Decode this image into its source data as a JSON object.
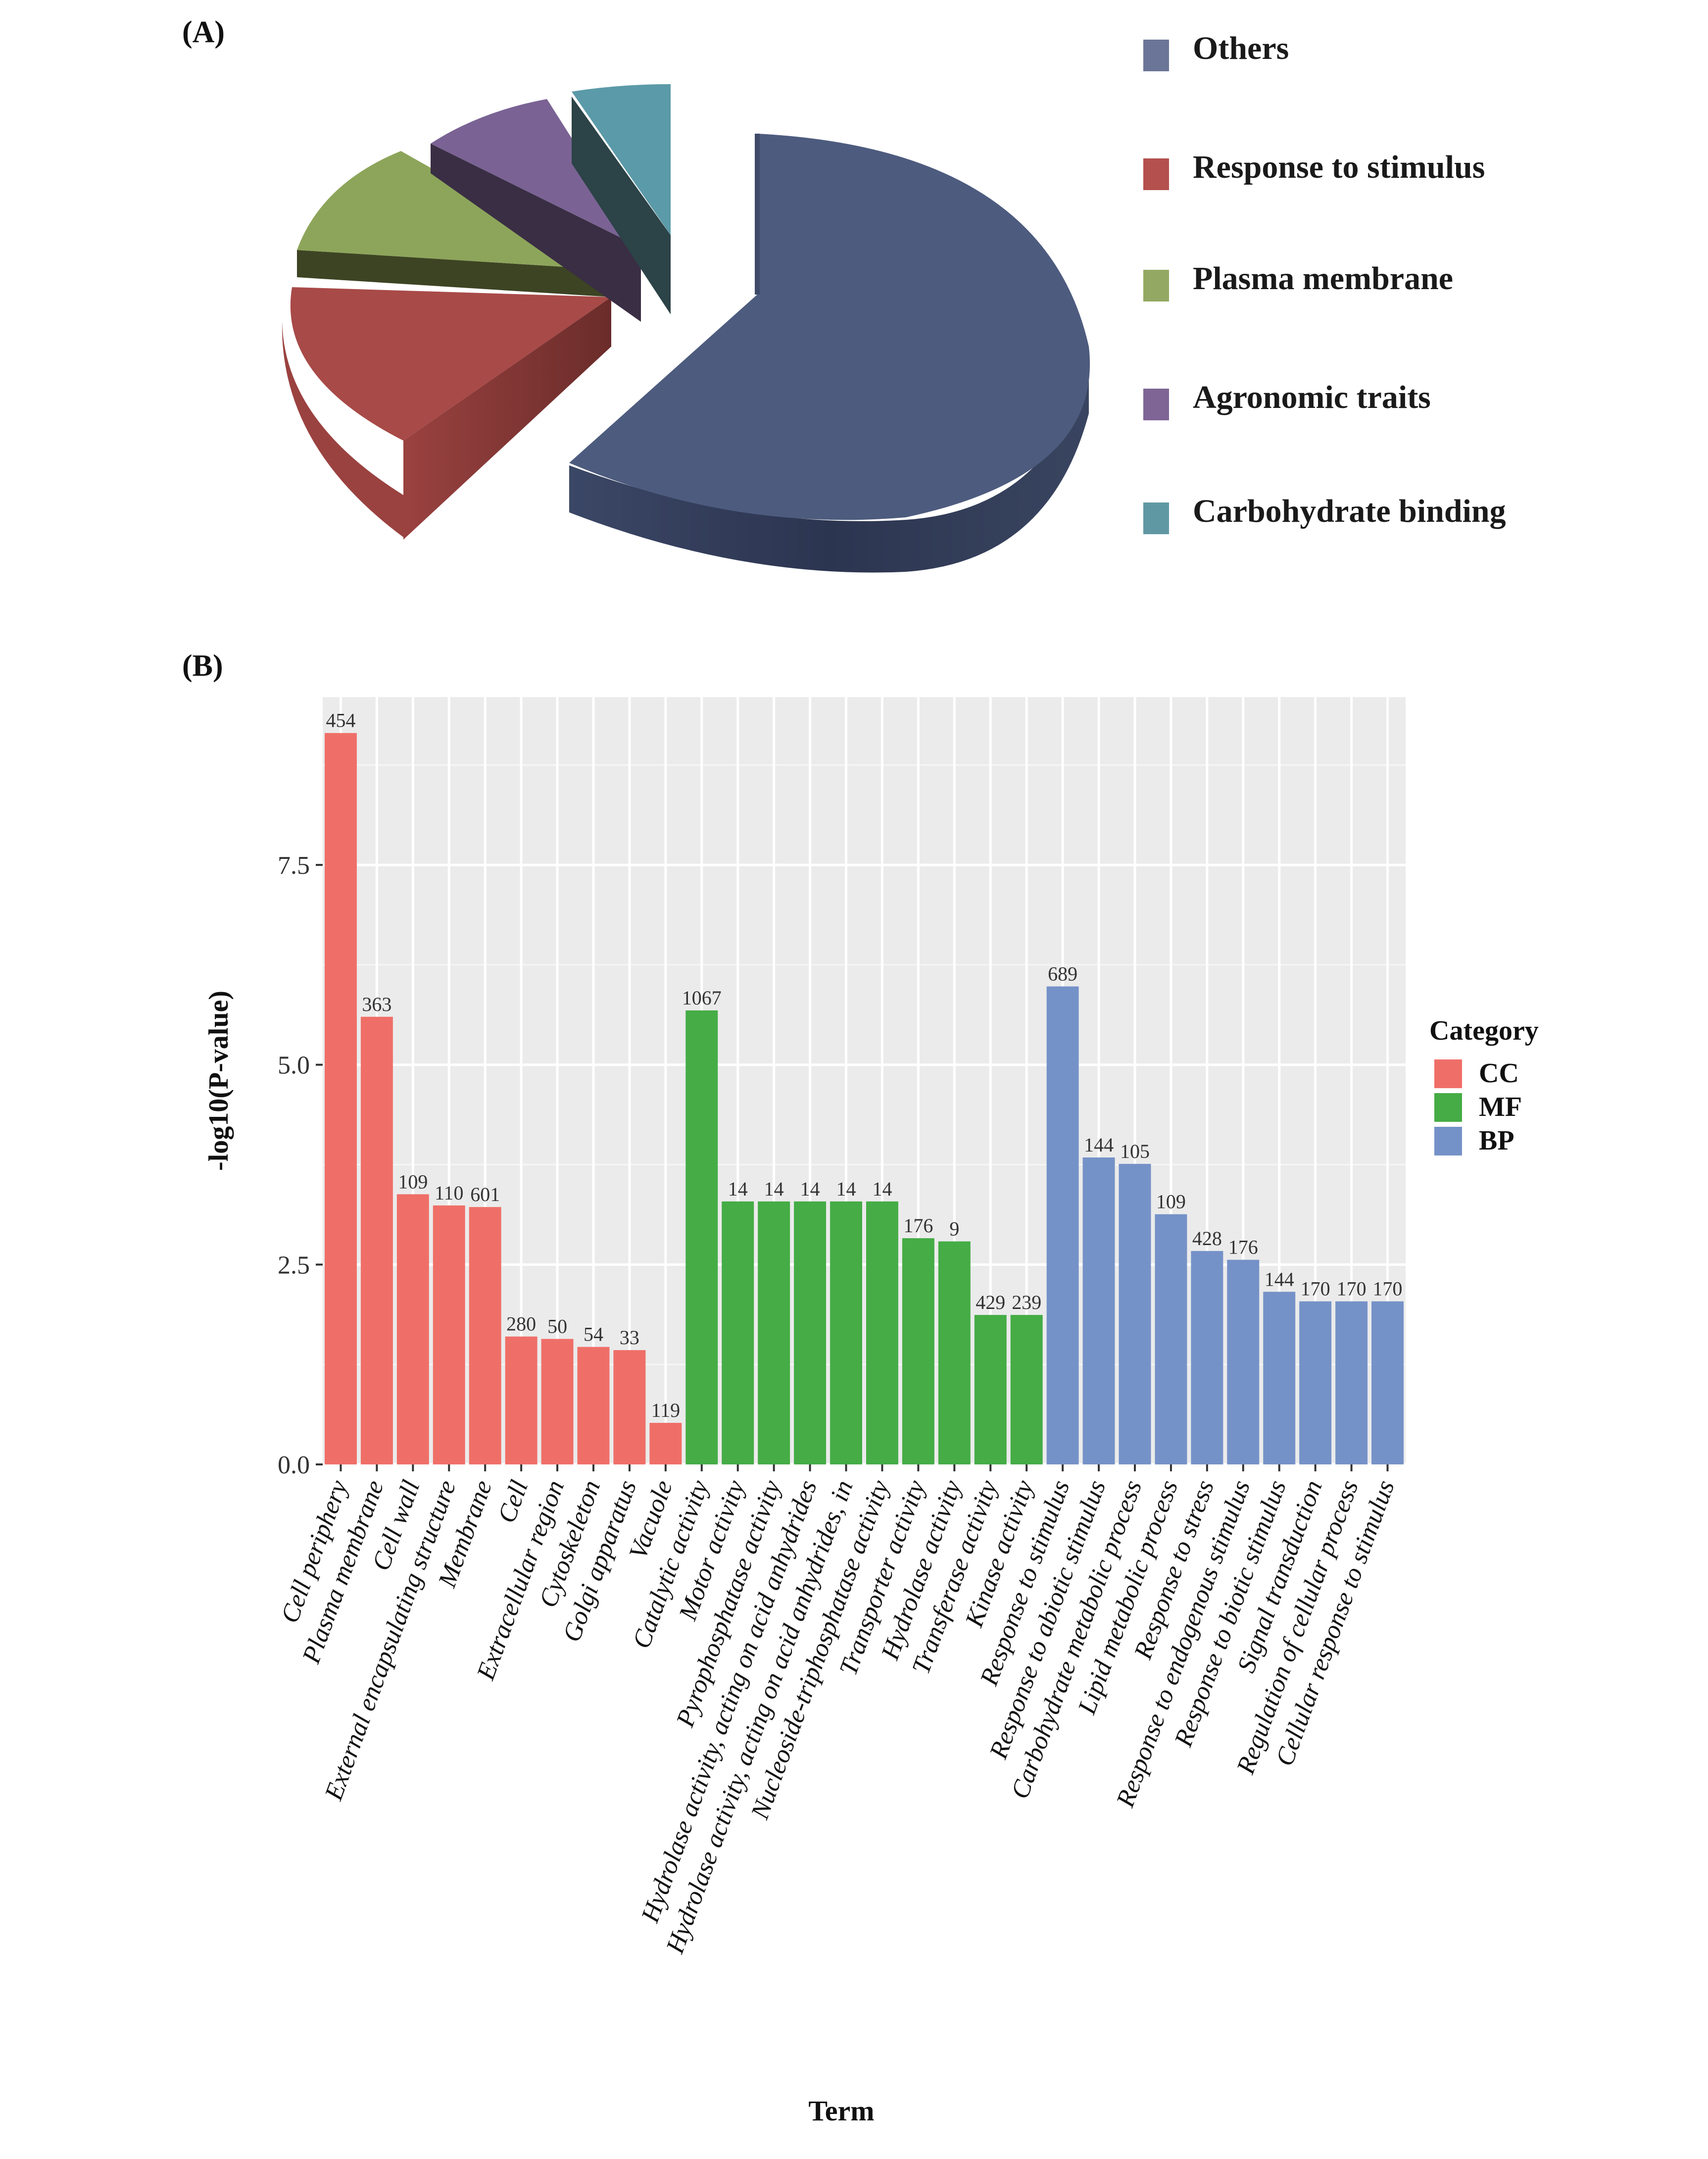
{
  "panels": {
    "a_label": "(A)",
    "b_label": "(B)"
  },
  "chart_data": [
    {
      "type": "pie",
      "style": "3d-exploded",
      "labels": [
        "Others",
        "Response to stimulus",
        "Plasma membrane",
        "Agronomic traits",
        "Carbohydrate binding"
      ],
      "values": [
        60,
        18,
        10,
        7,
        5
      ],
      "value_unit": "percent (estimated)",
      "colors": [
        "#4d5b7e",
        "#a84a48",
        "#8da55a",
        "#7a6394",
        "#5b9aa8"
      ],
      "legend_position": "right"
    },
    {
      "type": "bar",
      "xlabel": "Term",
      "ylabel": "-log10(P-value)",
      "ylim": [
        0,
        9.6
      ],
      "yticks": [
        "0.0",
        "2.5",
        "5.0",
        "7.5"
      ],
      "grid": true,
      "legend": {
        "title": "Category",
        "position": "right",
        "entries": [
          {
            "name": "CC",
            "color": "#ef6f68"
          },
          {
            "name": "MF",
            "color": "#45ac46"
          },
          {
            "name": "BP",
            "color": "#7592c8"
          }
        ]
      },
      "categories": [
        "Cell periphery",
        "Plasma membrane",
        "Cell wall",
        "External encapsulating structure",
        "Membrane",
        "Cell",
        "Extracellular region",
        "Cytoskeleton",
        "Golgi apparatus",
        "Vacuole",
        "Catalytic activity",
        "Motor activity",
        "Pyrophosphatase activity",
        "Hydrolase activity, acting on acid anhydrides",
        "Hydrolase activity, acting on acid anhydrides, in",
        "Nucleoside-triphosphatase activity",
        "Transporter activity",
        "Hydrolase activity",
        "Transferase activity",
        "Kinase activity",
        "Response to stimulus",
        "Response to abiotic stimulus",
        "Carbohydrate metabolic process",
        "Lipid metabolic process",
        "Response to stress",
        "Response to endogenous stimulus",
        "Response to biotic stimulus",
        "Signal transduction",
        "Regulation of cellular process",
        "Cellular response to stimulus"
      ],
      "tick_label_lines": [
        [
          "Cell periphery"
        ],
        [
          "Plasma membrane"
        ],
        [
          "Cell wall"
        ],
        [
          "External encapsulating structure"
        ],
        [
          "Membrane"
        ],
        [
          "Cell"
        ],
        [
          "Extracellular region"
        ],
        [
          "Cytoskeleton"
        ],
        [
          "Golgi apparatus"
        ],
        [
          "Vacuole"
        ],
        [
          "Catalytic activity"
        ],
        [
          "Motor activity"
        ],
        [
          "Pyrophosphatase activity"
        ],
        [
          "Hydrolase activity, acting on acid anhydrides"
        ],
        [
          "Hydrolase activity, acting on acid anhydrides, in"
        ],
        [
          "Nucleoside-triphosphatase activity"
        ],
        [
          "Transporter activity"
        ],
        [
          "Hydrolase activity"
        ],
        [
          "Transferase activity"
        ],
        [
          "Kinase activity"
        ],
        [
          "Response to stimulus"
        ],
        [
          "Response to abiotic stimulus"
        ],
        [
          "Carbohydrate metabolic process"
        ],
        [
          "Lipid metabolic process"
        ],
        [
          "Response to stress"
        ],
        [
          "Response to endogenous stimulus"
        ],
        [
          "Response to biotic stimulus"
        ],
        [
          "Signal transduction"
        ],
        [
          "Regulation of cellular process"
        ],
        [
          "Cellular response to stimulus"
        ]
      ],
      "category_group": [
        "CC",
        "CC",
        "CC",
        "CC",
        "CC",
        "CC",
        "CC",
        "CC",
        "CC",
        "CC",
        "MF",
        "MF",
        "MF",
        "MF",
        "MF",
        "MF",
        "MF",
        "MF",
        "MF",
        "MF",
        "BP",
        "BP",
        "BP",
        "BP",
        "BP",
        "BP",
        "BP",
        "BP",
        "BP",
        "BP"
      ],
      "values": [
        9.15,
        5.6,
        3.38,
        3.24,
        3.22,
        1.6,
        1.57,
        1.47,
        1.43,
        0.52,
        5.68,
        3.29,
        3.29,
        3.29,
        3.29,
        3.29,
        2.83,
        2.79,
        1.87,
        1.87,
        5.98,
        3.84,
        3.76,
        3.13,
        2.67,
        2.56,
        2.16,
        2.04,
        2.04,
        2.04
      ],
      "data_labels": [
        "454",
        "363",
        "109",
        "110",
        "601",
        "280",
        "50",
        "54",
        "33",
        "119",
        "1067",
        "14",
        "14",
        "14",
        "14",
        "14",
        "176",
        "9",
        "429",
        "239",
        "689",
        "144",
        "105",
        "109",
        "428",
        "176",
        "144",
        "170",
        "170",
        "170"
      ]
    }
  ]
}
